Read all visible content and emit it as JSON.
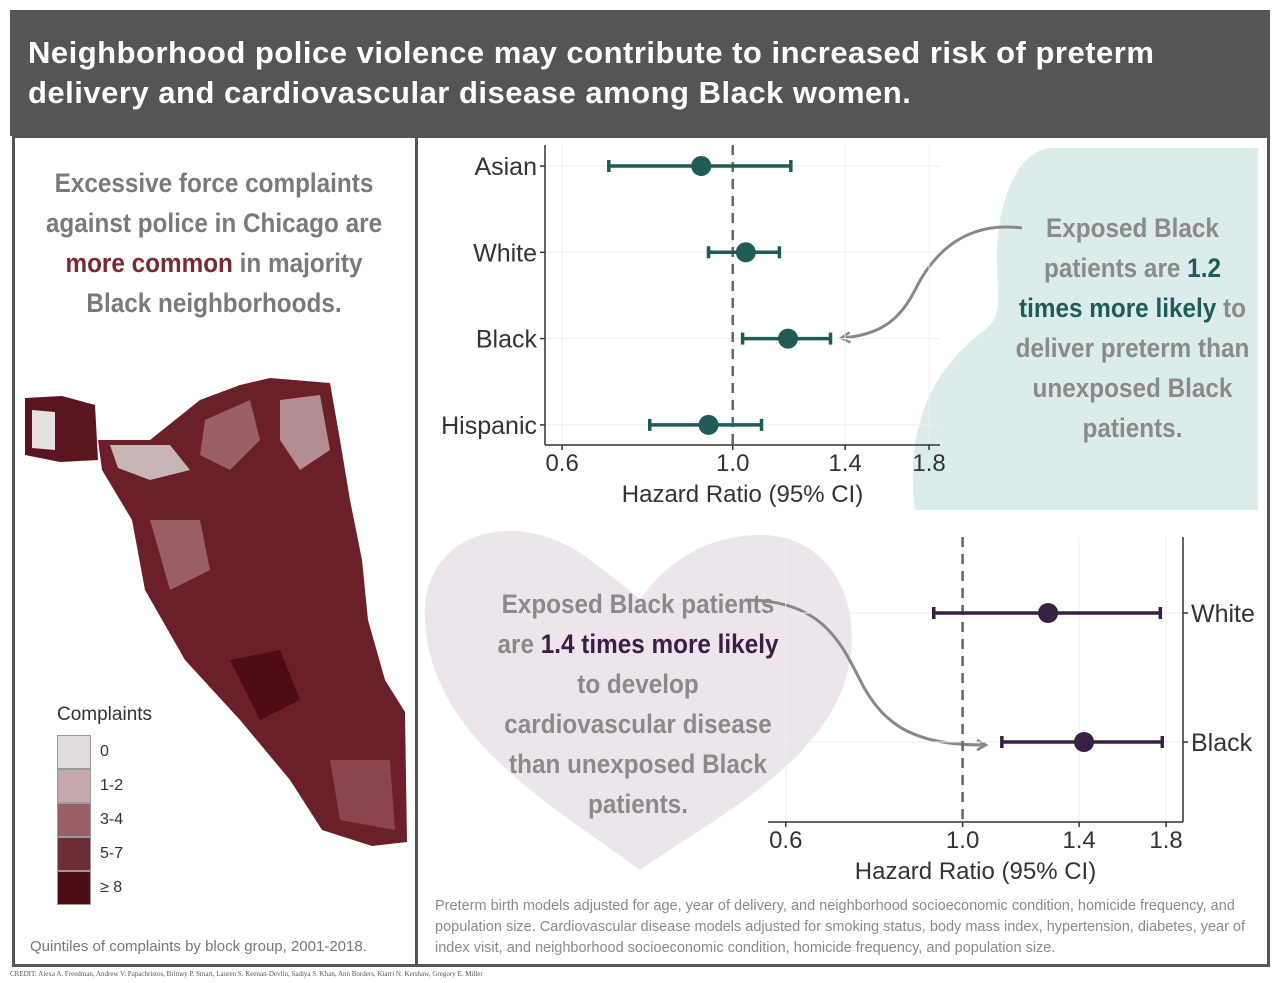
{
  "title": "Neighborhood police violence may contribute to increased risk of preterm delivery and cardiovascular disease among Black women.",
  "map_panel": {
    "text_parts": [
      "Excessive force complaints against police in Chicago are ",
      "more common",
      " in majority Black neighborhoods."
    ],
    "legend": {
      "title": "Complaints",
      "items": [
        "0",
        "1-2",
        "3-4",
        "5-7",
        "≥ 8"
      ],
      "colors": [
        "#e0dcdc",
        "#c4a9ad",
        "#9a5f66",
        "#6e2c35",
        "#4e0c14"
      ]
    },
    "caption": "Quintiles of complaints by block group, 2001-2018."
  },
  "callouts": [
    {
      "parts": [
        "Exposed Black patients are ",
        "1.2 times more likely",
        " to deliver preterm than unexposed Black patients."
      ]
    },
    {
      "parts": [
        "Exposed Black patients are ",
        "1.4 times more likely",
        " to develop cardiovascular disease than unexposed Black patients."
      ]
    }
  ],
  "chart_data": [
    {
      "type": "forest",
      "categories": [
        "Asian",
        "White",
        "Black",
        "Hispanic"
      ],
      "values": [
        0.91,
        1.04,
        1.18,
        0.93
      ],
      "ci_lower": [
        0.69,
        0.93,
        1.03,
        0.78
      ],
      "ci_upper": [
        1.19,
        1.15,
        1.34,
        1.09
      ],
      "color": "#1f5c57",
      "xscale": "log",
      "xlim": [
        0.57,
        1.86
      ],
      "xticks": [
        0.6,
        {
          "value": 1.0,
          "label": "1.0"
        },
        1.4,
        1.8
      ],
      "reference": 1,
      "grid": true,
      "x_label": "Hazard Ratio (95% CI)"
    },
    {
      "type": "forest",
      "categories": [
        "White",
        "Black"
      ],
      "values": [
        1.28,
        1.42
      ],
      "ci_lower": [
        0.92,
        1.12
      ],
      "ci_upper": [
        1.77,
        1.78
      ],
      "color": "#3a1f45",
      "xscale": "log",
      "xlim": [
        0.57,
        1.89
      ],
      "xticks": [
        0.6,
        {
          "value": 1.0,
          "label": "1.0"
        },
        1.4,
        1.8
      ],
      "reference": 1,
      "grid": true,
      "x_label": "Hazard Ratio (95% CI)"
    }
  ],
  "footnote": "Preterm birth models adjusted for age, year of delivery, and neighborhood socioeconomic condition, homicide frequency, and population size. Cardiovascular disease models adjusted for smoking status, body mass index, hypertension, diabetes, year of index visit, and neighborhood socioeconomic condition, homicide frequency, and population size.",
  "credit": "CREDIT: Alexa A. Freedman, Andrew V. Papachristos, Britney P. Smart, Lauren S. Keenan-Devlin, Sadiya S. Khan, Ann Borders, Kiarri N. Kershaw, Gregory E. Miller"
}
